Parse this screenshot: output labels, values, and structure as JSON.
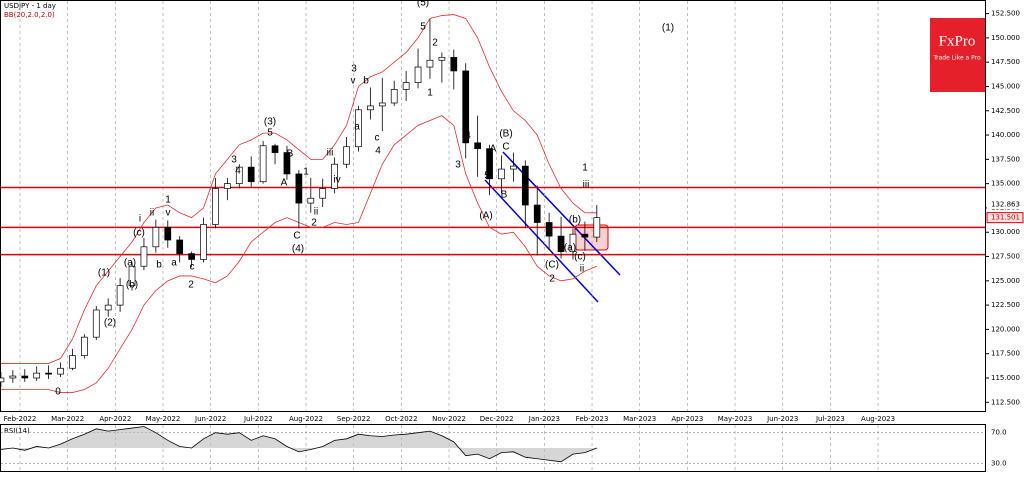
{
  "chart_data": {
    "type": "candlestick",
    "title": "USDJPY - 1 day",
    "subtitle": "BB(20,2.0,2.0)",
    "xticks": [
      "Feb-2022",
      "Mar-2022",
      "Apr-2022",
      "May-2022",
      "Jun-2022",
      "Jul-2022",
      "Aug-2022",
      "Sep-2022",
      "Oct-2022",
      "Nov-2022",
      "Dec-2022",
      "Jan-2023",
      "Feb-2023",
      "Mar-2023",
      "Apr-2023",
      "May-2023",
      "Jun-2023",
      "Jul-2023",
      "Aug-2023"
    ],
    "open": [
      114.6,
      115.0,
      115.2,
      115.0,
      115.5,
      115.4,
      116.0,
      117.3,
      119.2,
      122.0,
      122.5,
      124.5,
      126.5,
      128.5,
      130.5,
      129.2,
      127.8,
      127.2,
      130.8,
      134.5,
      135.0,
      136.7,
      135.2,
      138.9,
      138.2,
      136.0,
      133.0,
      133.5,
      134.5,
      137.0,
      138.8,
      142.6,
      143.0,
      143.3,
      144.7,
      145.4,
      147.0,
      147.7,
      148.0,
      146.6,
      139.2,
      138.6,
      135.5,
      136.5,
      136.8,
      132.8,
      131.0,
      129.6,
      128.0,
      129.8,
      129.5
    ],
    "high": [
      115.6,
      115.8,
      115.9,
      116.2,
      116.3,
      116.6,
      118.0,
      119.5,
      122.4,
      123.2,
      125.3,
      126.9,
      129.4,
      131.3,
      131.2,
      129.6,
      128.0,
      131.5,
      135.6,
      135.6,
      137.0,
      137.8,
      139.4,
      139.1,
      138.9,
      136.4,
      135.6,
      135.5,
      137.7,
      139.8,
      143.0,
      144.9,
      145.9,
      145.6,
      146.6,
      148.9,
      151.9,
      148.5,
      148.8,
      147.4,
      142.0,
      139.0,
      137.9,
      138.2,
      137.4,
      134.8,
      132.0,
      131.6,
      130.4,
      131.1,
      132.8
    ],
    "low": [
      114.1,
      114.5,
      114.6,
      114.7,
      114.9,
      115.1,
      115.8,
      117.0,
      118.9,
      121.3,
      121.8,
      124.0,
      126.1,
      127.9,
      128.4,
      126.9,
      126.4,
      126.9,
      130.4,
      133.3,
      134.5,
      134.7,
      135.0,
      137.0,
      135.4,
      130.4,
      132.0,
      132.6,
      134.0,
      136.6,
      138.3,
      141.6,
      140.4,
      143.0,
      143.5,
      144.8,
      145.8,
      145.4,
      144.7,
      137.6,
      135.7,
      133.8,
      134.0,
      135.2,
      130.4,
      127.6,
      128.2,
      127.3,
      127.2,
      128.1,
      129.0
    ],
    "close": [
      115.0,
      115.2,
      115.0,
      115.5,
      115.4,
      116.0,
      117.3,
      119.2,
      122.0,
      122.5,
      124.5,
      126.5,
      128.5,
      130.5,
      129.2,
      127.8,
      127.2,
      130.8,
      134.5,
      135.0,
      136.7,
      135.2,
      138.9,
      138.2,
      136.0,
      133.0,
      133.5,
      134.5,
      137.0,
      138.8,
      142.6,
      143.0,
      143.3,
      144.7,
      145.4,
      147.0,
      147.7,
      148.0,
      146.6,
      139.2,
      138.6,
      135.5,
      136.5,
      136.8,
      132.8,
      131.0,
      129.6,
      128.0,
      129.8,
      129.5,
      131.5
    ],
    "bb_upper": [
      116.5,
      116.5,
      116.5,
      116.5,
      116.5,
      117,
      119,
      122,
      124.5,
      126,
      127.5,
      129,
      131,
      132.5,
      132.8,
      132,
      131.5,
      132.5,
      136,
      137.5,
      139,
      139.5,
      140.2,
      140.2,
      139.5,
      138.5,
      137.5,
      137.5,
      139,
      141,
      145,
      146,
      146.5,
      147.5,
      148.5,
      150,
      152,
      152.3,
      152.4,
      152,
      150,
      147,
      144.5,
      142.5,
      141.5,
      140,
      137,
      134.5,
      133,
      132,
      132
    ],
    "bb_lower": [
      113.8,
      113.8,
      113.8,
      113.8,
      113.8,
      113.5,
      113.5,
      113.8,
      114.5,
      116,
      118,
      120,
      122.5,
      124,
      125,
      125.5,
      125.5,
      125.2,
      124.8,
      125.5,
      127,
      129,
      130,
      131,
      131.5,
      131,
      130.5,
      130.5,
      131,
      130.8,
      131,
      134,
      137,
      139,
      140,
      141,
      141.5,
      142,
      141,
      136,
      133,
      130.5,
      129.8,
      130,
      128.5,
      126.5,
      125.5,
      125,
      125.2,
      126,
      126.5
    ],
    "ylim": [
      111.5,
      153.9
    ],
    "yticks": [
      {
        "value": 152.5,
        "label": "152.500"
      },
      {
        "value": 150,
        "label": "150.000"
      },
      {
        "value": 147.5,
        "label": "147.500"
      },
      {
        "value": 145,
        "label": "145.000"
      },
      {
        "value": 142.5,
        "label": "142.500"
      },
      {
        "value": 140,
        "label": "140.000"
      },
      {
        "value": 137.5,
        "label": "137.500"
      },
      {
        "value": 135,
        "label": "135.000"
      },
      {
        "value": 132.5,
        "label": "132.500"
      },
      {
        "value": 130,
        "label": "130.000"
      },
      {
        "value": 127.5,
        "label": "127.500"
      },
      {
        "value": 125,
        "label": "125.000"
      },
      {
        "value": 122.5,
        "label": "122.500"
      },
      {
        "value": 120,
        "label": "120.000"
      },
      {
        "value": 117.5,
        "label": "117.500"
      },
      {
        "value": 115,
        "label": "115.000"
      },
      {
        "value": 112.5,
        "label": "112.500"
      }
    ],
    "price_labels": [
      {
        "value": 132.863,
        "label": "132.863"
      },
      {
        "value": 131.501,
        "label": "131.501"
      }
    ],
    "levels": [
      134.6,
      130.5,
      127.7
    ],
    "level_color": "#e00000",
    "bb_color": "#e03030",
    "grid": true,
    "annotations": [
      "0",
      "(1)",
      "(2)",
      "i",
      "ii",
      "v",
      "1",
      "(c)",
      "(a)",
      "(b)",
      "2",
      "c",
      "a",
      "b",
      "3",
      "5",
      "(3)",
      "4",
      "B",
      "A",
      "C",
      "(4)",
      "2",
      "1",
      "ii",
      "iii",
      "iv",
      "3",
      "v",
      "b",
      "a",
      "c",
      "4",
      "5",
      "(5)",
      "2",
      "1",
      "4",
      "3",
      "A",
      "(B)",
      "C",
      "5",
      "B",
      "(A)",
      "1",
      "iii",
      "(b)",
      "(a)",
      "(c)",
      "ii",
      "(C)",
      "2",
      "(1)"
    ],
    "rsi": {
      "label": "RSI(14)",
      "values": [
        48,
        50,
        47,
        52,
        50,
        55,
        62,
        68,
        75,
        72,
        74,
        76,
        78,
        70,
        60,
        52,
        50,
        62,
        70,
        68,
        70,
        60,
        66,
        62,
        52,
        45,
        48,
        52,
        60,
        62,
        68,
        66,
        65,
        67,
        68,
        70,
        72,
        66,
        58,
        40,
        42,
        36,
        44,
        45,
        38,
        36,
        34,
        32,
        42,
        44,
        50
      ],
      "ylim": [
        20,
        80
      ],
      "yticks": [
        {
          "value": 70,
          "label": "70.0"
        },
        {
          "value": 30,
          "label": "30.0"
        }
      ]
    },
    "brand": {
      "name": "FxPro",
      "tagline": "Trade Like a Pro"
    }
  }
}
